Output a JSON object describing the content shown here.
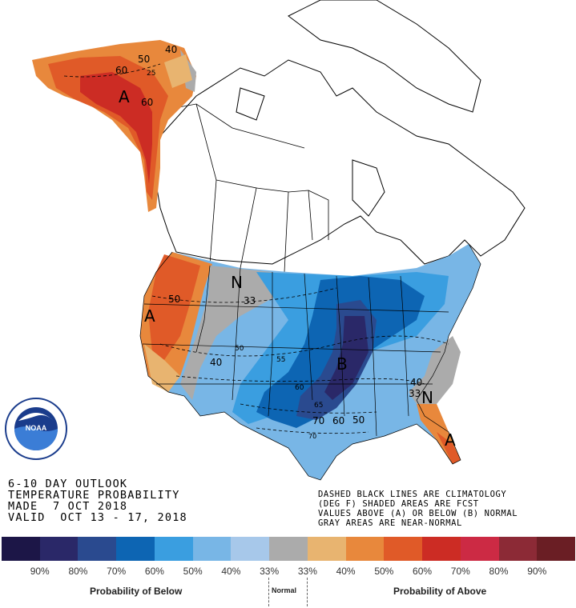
{
  "title": {
    "line1": "6-10 DAY OUTLOOK",
    "line2": "TEMPERATURE PROBABILITY",
    "line3": "MADE  7 OCT 2018",
    "line4": "VALID  OCT 13 - 17, 2018"
  },
  "notes": {
    "line1": "DASHED BLACK LINES ARE CLIMATOLOGY",
    "line2": "(DEG F) SHADED AREAS ARE FCST",
    "line3": "VALUES ABOVE (A) OR BELOW (B) NORMAL",
    "line4": "GRAY AREAS ARE NEAR-NORMAL"
  },
  "logo": {
    "text": "NOAA",
    "ring_text": "NATIONAL OCEANIC AND ATMOSPHERIC ADMINISTRATION · U.S. DEPARTMENT OF COMMERCE"
  },
  "map_labels": {
    "A_alaska": "A",
    "A_west": "A",
    "B_center": "B",
    "N_north": "N",
    "N_southeast": "N",
    "ak_50": "50",
    "ak_40": "40",
    "ak_60a": "60",
    "ak_60b": "60",
    "ak_25": "25",
    "w_50": "50",
    "w_40": "40",
    "n_33": "33",
    "c_50": "50",
    "c_55": "55",
    "c_60": "60",
    "s_65": "65",
    "s_70a": "70",
    "s_60": "60",
    "s_50": "50",
    "s_70b": "70",
    "se_40": "40",
    "se_33": "33"
  },
  "legend": {
    "colors": [
      "#1c1647",
      "#2a2868",
      "#2a4a8f",
      "#0d65b3",
      "#3a9ee0",
      "#78b6e6",
      "#a7c8ea",
      "#ababab",
      "#e8b470",
      "#e8883c",
      "#e05a28",
      "#cc2c24",
      "#cc2a44",
      "#8c2a36",
      "#6a1e24"
    ],
    "ticks": [
      "90%",
      "80%",
      "70%",
      "60%",
      "50%",
      "40%",
      "33%",
      "33%",
      "40%",
      "50%",
      "60%",
      "70%",
      "80%",
      "90%"
    ],
    "below_label": "Probability of Below",
    "normal_label": "Normal",
    "above_label": "Probability of Above"
  }
}
